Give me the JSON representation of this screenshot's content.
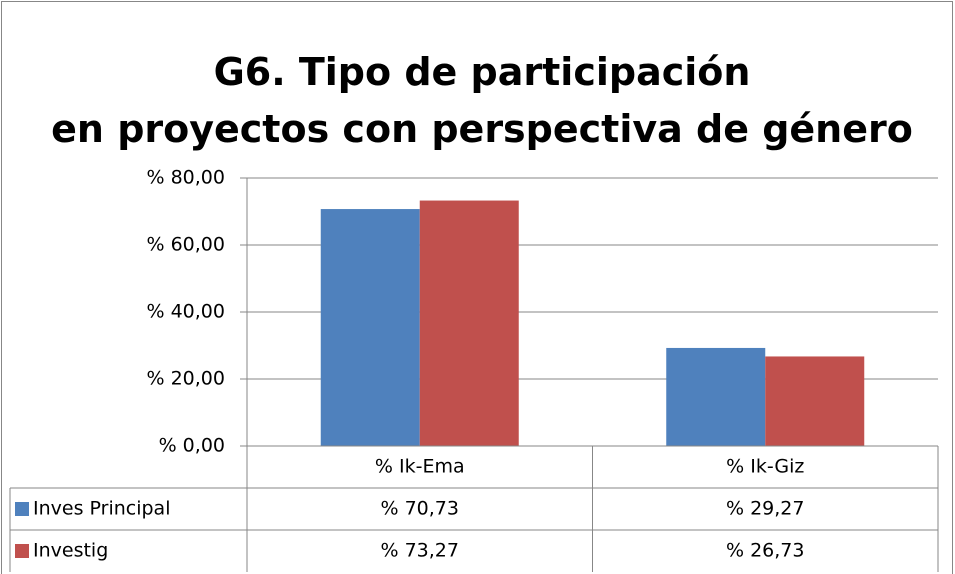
{
  "chart_data": {
    "type": "bar",
    "title": "G6. Tipo de participación en proyectos con perspectiva de género",
    "categories": [
      "% Ik-Ema",
      "% Ik-Giz"
    ],
    "series": [
      {
        "name": "Inves Principal",
        "color": "#4f81bd",
        "values": [
          70.73,
          29.27
        ],
        "value_labels": [
          "% 70,73",
          "% 29,27"
        ]
      },
      {
        "name": "Investig",
        "color": "#c0504d",
        "values": [
          73.27,
          26.73
        ],
        "value_labels": [
          "% 73,27",
          "% 26,73"
        ]
      }
    ],
    "ylim": [
      0,
      80
    ],
    "yticks": [
      {
        "value": 0,
        "label": "% 0,00"
      },
      {
        "value": 20,
        "label": "% 20,00"
      },
      {
        "value": 40,
        "label": "% 40,00"
      },
      {
        "value": 60,
        "label": "% 60,00"
      },
      {
        "value": 80,
        "label": "% 80,00"
      }
    ],
    "grid": true
  }
}
